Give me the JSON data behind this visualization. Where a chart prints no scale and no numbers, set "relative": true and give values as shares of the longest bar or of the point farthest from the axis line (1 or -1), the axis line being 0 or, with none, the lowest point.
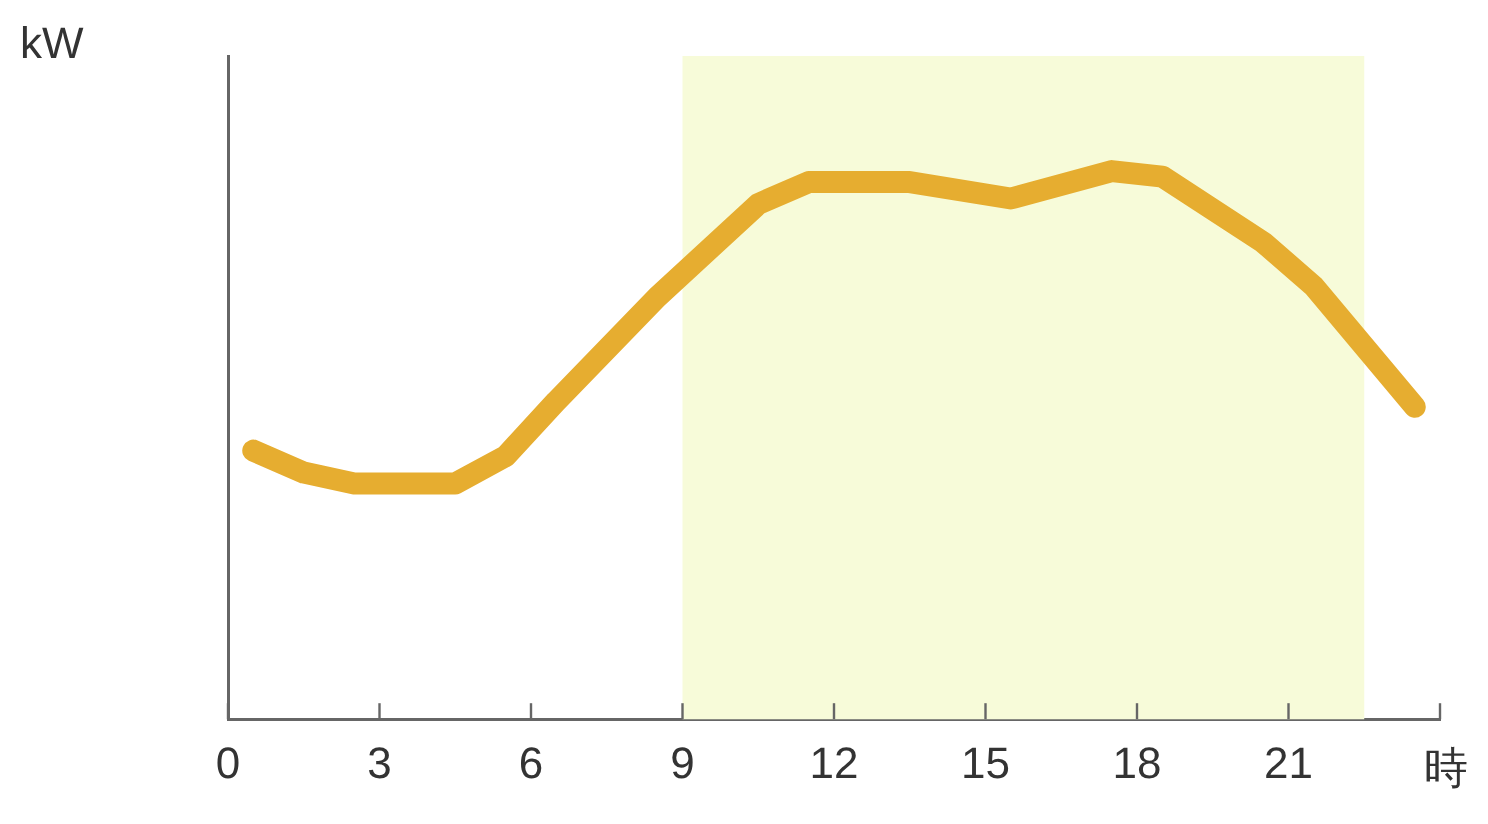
{
  "chart_data": {
    "type": "line",
    "relative": true,
    "ylabel": "kW",
    "xlabel": "時",
    "tick_labels": "x",
    "grid": false,
    "legend": false,
    "marker": "none",
    "line_style": "solid",
    "xlim": [
      0,
      24
    ],
    "xticks": [
      0,
      3,
      6,
      9,
      12,
      15,
      18,
      21,
      {
        "value": 24,
        "label": null
      }
    ],
    "bands": [
      {
        "axis": "x",
        "from": 9,
        "to": 22.5,
        "color": "#f7fbd9"
      }
    ],
    "series": [
      {
        "color": "#e6ad30",
        "x": [
          0.5,
          1.5,
          2.5,
          4.5,
          5.5,
          6.5,
          8.5,
          10.5,
          11.5,
          13.5,
          15.5,
          17.5,
          18.5,
          20.5,
          21.5,
          23.5
        ],
        "values": [
          0.49,
          0.45,
          0.43,
          0.43,
          0.48,
          0.58,
          0.77,
          0.94,
          0.98,
          0.98,
          0.95,
          1,
          0.99,
          0.87,
          0.79,
          0.57
        ]
      }
    ]
  }
}
